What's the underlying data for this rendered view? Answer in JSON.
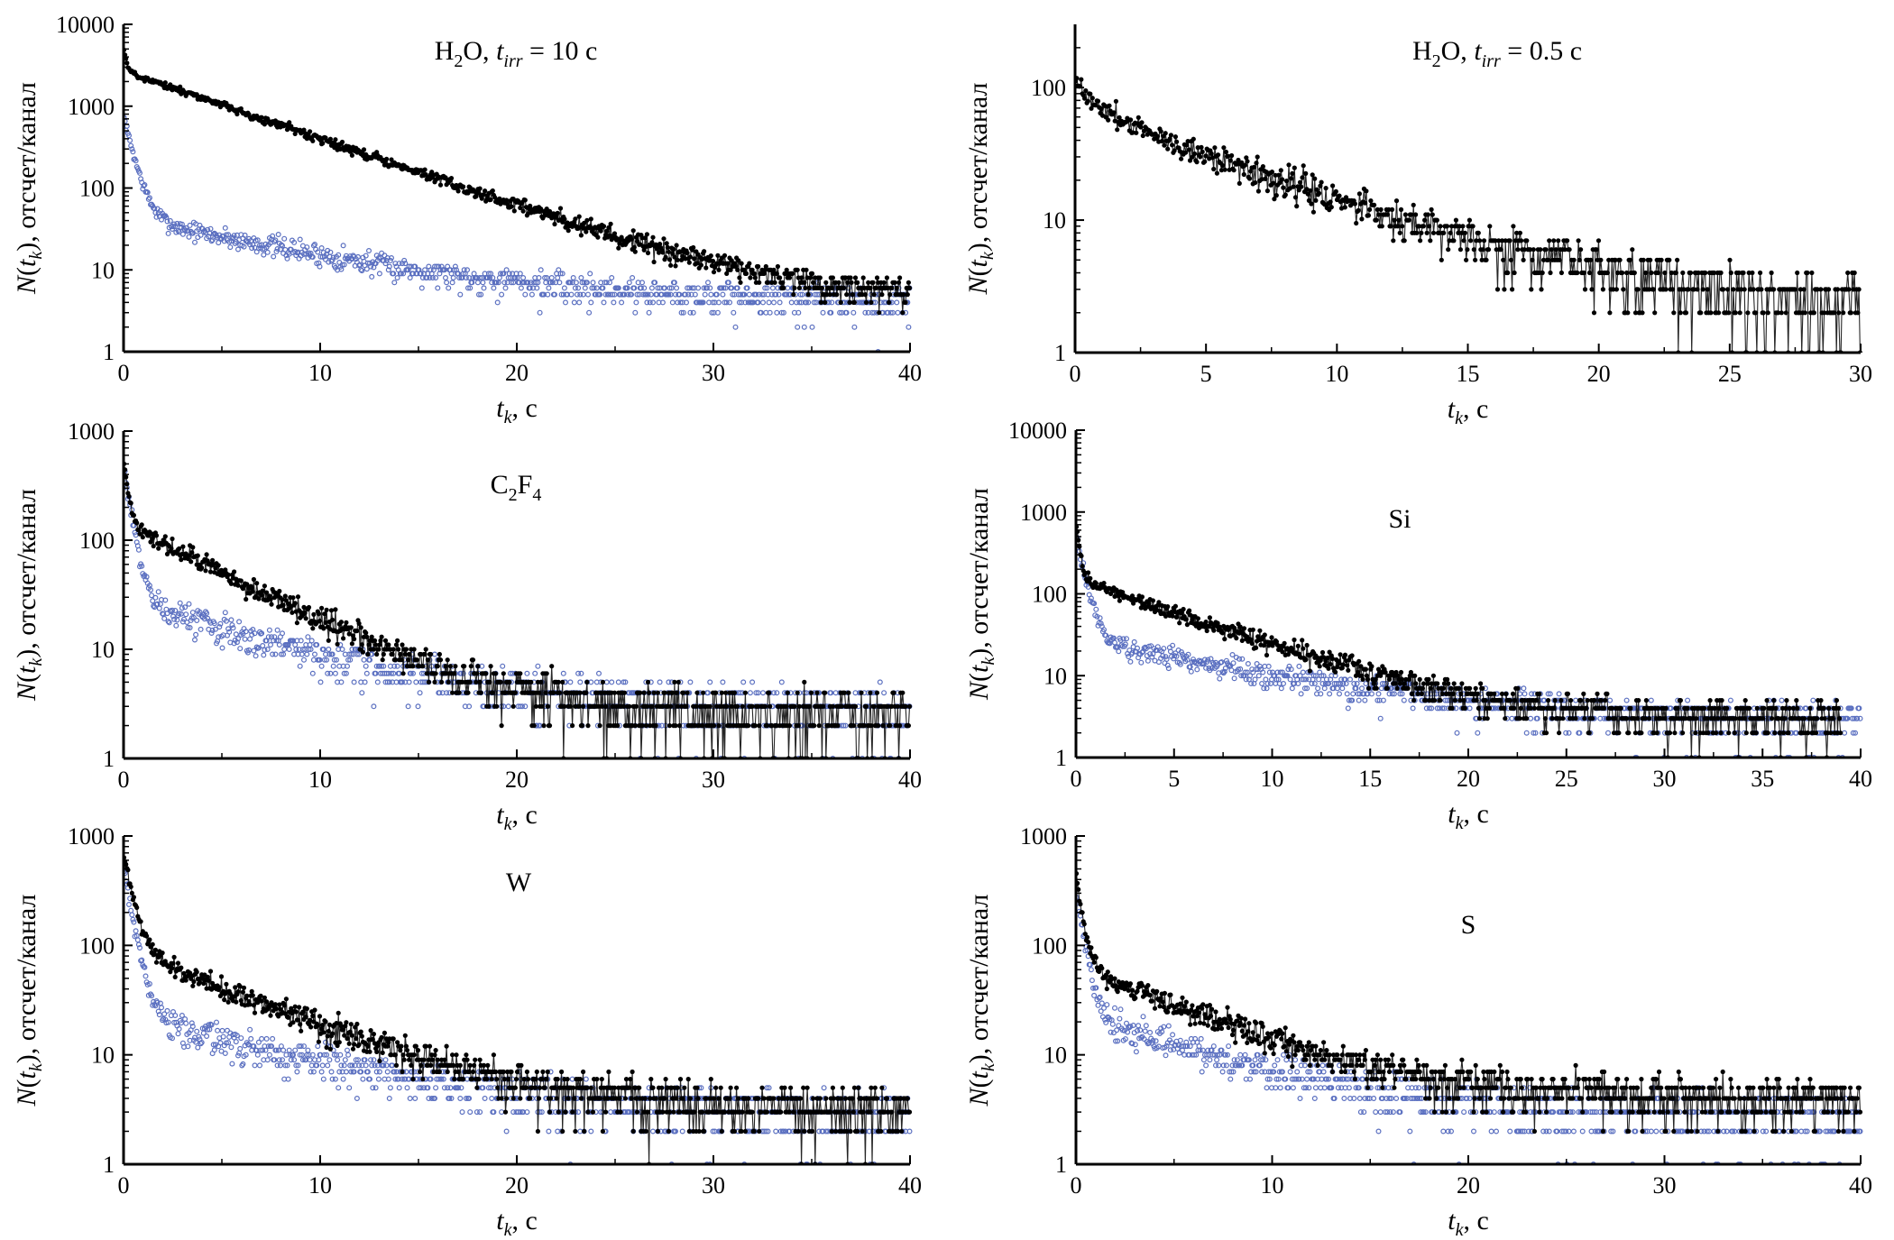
{
  "figure": {
    "colors": {
      "series_main": "#000000",
      "series_background": "#5a6fc0",
      "axis": "#000000"
    }
  },
  "chart_data": [
    {
      "id": "h2o-10s",
      "type": "scatter",
      "title_parts": {
        "formula": "H",
        "sub1": "2",
        "rest": "O, ",
        "t": "t",
        "sub2": "irr",
        "eq": " = 10 c"
      },
      "title": "H2O, t_irr = 10 c",
      "xlabel": "t_k, c",
      "ylabel": "N(t_k), отсчет/канал",
      "xlim": [
        0,
        40
      ],
      "ylim": [
        1,
        10000
      ],
      "yscale": "log",
      "xticks": [
        0,
        10,
        20,
        30,
        40
      ],
      "xtick_labels": [
        "0",
        "10",
        "20",
        "30",
        "40"
      ],
      "yticks": [
        1,
        10,
        100,
        1000,
        10000
      ],
      "ytick_labels": [
        "1",
        "10",
        "100",
        "1000",
        "10000"
      ],
      "series": [
        {
          "name": "measured",
          "style": "line+markers",
          "color": "#000000",
          "model": {
            "components": [
              {
                "amp": 2700,
                "half_life_s": 3.6
              },
              {
                "amp": 3000,
                "half_life_s": 0.08
              }
            ],
            "baseline": 4,
            "x_end": 40,
            "n_points": 800
          }
        },
        {
          "name": "background",
          "style": "open-circles",
          "color": "#5a6fc0",
          "model": {
            "components": [
              {
                "amp": 40,
                "half_life_s": 5.5
              },
              {
                "amp": 700,
                "half_life_s": 0.3
              }
            ],
            "baseline": 4,
            "x_end": 40,
            "n_points": 800
          }
        }
      ]
    },
    {
      "id": "h2o-05s",
      "type": "scatter",
      "title_parts": {
        "formula": "H",
        "sub1": "2",
        "rest": "O, ",
        "t": "t",
        "sub2": "irr",
        "eq": " = 0.5 c"
      },
      "title": "H2O, t_irr = 0.5 c",
      "xlabel": "t_k, c",
      "ylabel": "N(t_k), отсчет/канал",
      "xlim": [
        0,
        30
      ],
      "ylim": [
        1,
        300
      ],
      "yscale": "log",
      "xticks": [
        0,
        5,
        10,
        15,
        20,
        25,
        30
      ],
      "xtick_labels": [
        "0",
        "5",
        "10",
        "15",
        "20",
        "25",
        "30"
      ],
      "yticks": [
        1,
        10,
        100
      ],
      "ytick_labels": [
        "1",
        "10",
        "100"
      ],
      "series": [
        {
          "name": "measured",
          "style": "line+markers",
          "color": "#000000",
          "model": {
            "components": [
              {
                "amp": 70,
                "half_life_s": 4.0
              },
              {
                "amp": 40,
                "half_life_s": 0.5
              }
            ],
            "baseline": 2,
            "x_end": 30,
            "n_points": 700
          }
        }
      ]
    },
    {
      "id": "c2f4",
      "type": "scatter",
      "title_parts": {
        "formula": "C",
        "sub1": "2",
        "rest": "F",
        "sub3": "4"
      },
      "title": "C2F4",
      "xlabel": "t_k, c",
      "ylabel": "N(t_k), отсчет/канал",
      "xlim": [
        0,
        40
      ],
      "ylim": [
        1,
        1000
      ],
      "yscale": "log",
      "xticks": [
        0,
        10,
        20,
        30,
        40
      ],
      "xtick_labels": [
        "0",
        "10",
        "20",
        "30",
        "40"
      ],
      "yticks": [
        1,
        10,
        100,
        1000
      ],
      "ytick_labels": [
        "1",
        "10",
        "100",
        "1000"
      ],
      "series": [
        {
          "name": "measured",
          "style": "line+markers",
          "color": "#000000",
          "model": {
            "components": [
              {
                "amp": 140,
                "half_life_s": 3.2
              },
              {
                "amp": 400,
                "half_life_s": 0.15
              }
            ],
            "baseline": 2.5,
            "x_end": 40,
            "n_points": 800
          }
        },
        {
          "name": "background",
          "style": "open-circles",
          "color": "#5a6fc0",
          "model": {
            "components": [
              {
                "amp": 25,
                "half_life_s": 5.0
              },
              {
                "amp": 450,
                "half_life_s": 0.25
              }
            ],
            "baseline": 2.8,
            "x_end": 40,
            "n_points": 800
          }
        }
      ]
    },
    {
      "id": "si",
      "type": "scatter",
      "title_parts": {
        "formula": "Si"
      },
      "title": "Si",
      "xlabel": "t_k, c",
      "ylabel": "N(t_k), отсчет/канал",
      "xlim": [
        0,
        40
      ],
      "ylim": [
        1,
        10000
      ],
      "yscale": "log",
      "xticks": [
        0,
        5,
        10,
        15,
        20,
        25,
        30,
        35,
        40
      ],
      "xtick_labels": [
        "0",
        "5",
        "10",
        "15",
        "20",
        "25",
        "30",
        "35",
        "40"
      ],
      "yticks": [
        1,
        10,
        100,
        1000,
        10000
      ],
      "ytick_labels": [
        "1",
        "10",
        "100",
        "1000",
        "10000"
      ],
      "series": [
        {
          "name": "measured",
          "style": "line+markers",
          "color": "#000000",
          "model": {
            "components": [
              {
                "amp": 150,
                "half_life_s": 3.5
              },
              {
                "amp": 600,
                "half_life_s": 0.12
              }
            ],
            "baseline": 3,
            "x_end": 39,
            "n_points": 780
          }
        },
        {
          "name": "background",
          "style": "open-circles",
          "color": "#5a6fc0",
          "model": {
            "components": [
              {
                "amp": 25,
                "half_life_s": 6.0
              },
              {
                "amp": 500,
                "half_life_s": 0.25
              }
            ],
            "baseline": 2.5,
            "x_end": 40,
            "n_points": 800
          }
        }
      ]
    },
    {
      "id": "w",
      "type": "scatter",
      "title_parts": {
        "formula": "W"
      },
      "title": "W",
      "xlabel": "t_k, c",
      "ylabel": "N(t_k), отсчет/канал",
      "xlim": [
        0,
        40
      ],
      "ylim": [
        1,
        1000
      ],
      "yscale": "log",
      "xticks": [
        0,
        10,
        20,
        30,
        40
      ],
      "xtick_labels": [
        "0",
        "10",
        "20",
        "30",
        "40"
      ],
      "yticks": [
        1,
        10,
        100,
        1000
      ],
      "ytick_labels": [
        "1",
        "10",
        "100",
        "1000"
      ],
      "series": [
        {
          "name": "measured",
          "style": "line+markers",
          "color": "#000000",
          "model": {
            "components": [
              {
                "amp": 90,
                "half_life_s": 4.0
              },
              {
                "amp": 600,
                "half_life_s": 0.3
              }
            ],
            "baseline": 3,
            "x_end": 40,
            "n_points": 800
          }
        },
        {
          "name": "background",
          "style": "open-circles",
          "color": "#5a6fc0",
          "model": {
            "components": [
              {
                "amp": 20,
                "half_life_s": 6.0
              },
              {
                "amp": 450,
                "half_life_s": 0.3
              }
            ],
            "baseline": 2.5,
            "x_end": 40,
            "n_points": 800
          }
        }
      ]
    },
    {
      "id": "s",
      "type": "scatter",
      "title_parts": {
        "formula": "S"
      },
      "title": "S",
      "xlabel": "t_k, c",
      "ylabel": "N(t_k), отсчет/канал",
      "xlim": [
        0,
        40
      ],
      "ylim": [
        1,
        1000
      ],
      "yscale": "log",
      "xticks": [
        0,
        10,
        20,
        30,
        40
      ],
      "xtick_labels": [
        "0",
        "10",
        "20",
        "30",
        "40"
      ],
      "yticks": [
        1,
        10,
        100,
        1000
      ],
      "ytick_labels": [
        "1",
        "10",
        "100",
        "1000"
      ],
      "series": [
        {
          "name": "measured",
          "style": "line+markers",
          "color": "#000000",
          "model": {
            "components": [
              {
                "amp": 60,
                "half_life_s": 3.8
              },
              {
                "amp": 400,
                "half_life_s": 0.2
              }
            ],
            "baseline": 4,
            "x_end": 40,
            "n_points": 800
          }
        },
        {
          "name": "background",
          "style": "open-circles",
          "color": "#5a6fc0",
          "model": {
            "components": [
              {
                "amp": 20,
                "half_life_s": 5.0
              },
              {
                "amp": 300,
                "half_life_s": 0.25
              }
            ],
            "baseline": 2.5,
            "x_end": 40,
            "n_points": 800
          }
        }
      ]
    }
  ]
}
